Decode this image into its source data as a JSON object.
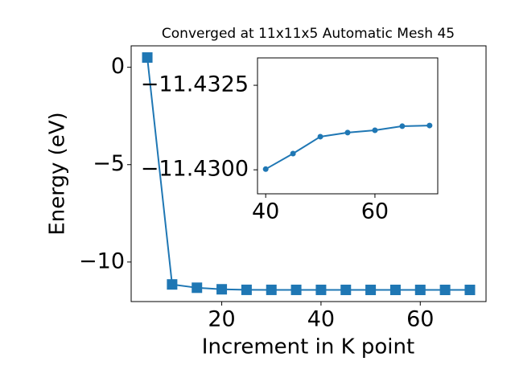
{
  "chart_data": [
    {
      "type": "line",
      "title": "Converged at 11x11x5 Automatic Mesh 45",
      "xlabel": "Increment in K point",
      "ylabel": "Energy (eV)",
      "x": [
        5,
        10,
        15,
        20,
        25,
        30,
        35,
        40,
        45,
        50,
        55,
        60,
        65,
        70
      ],
      "series": [
        {
          "color": "#1f77b4",
          "marker": "square",
          "values": [
            0.5,
            -11.15,
            -11.32,
            -11.4,
            -11.428,
            -11.429,
            -11.4297,
            -11.43,
            -11.4305,
            -11.431,
            -11.4311,
            -11.4312,
            -11.4313,
            -11.4313
          ]
        }
      ],
      "xlim": [
        1.75,
        73.25
      ],
      "xticks": [
        20,
        40,
        60
      ],
      "ylim": [
        -12.03,
        1.1
      ],
      "yticks": [
        {
          "value": 0,
          "label": "0"
        },
        {
          "value": -5,
          "label": "−5"
        },
        {
          "value": -10,
          "label": "−10"
        }
      ]
    },
    {
      "type": "line",
      "x": [
        40,
        45,
        50,
        55,
        60,
        65,
        70
      ],
      "series": [
        {
          "color": "#1f77b4",
          "marker": "circle",
          "values": [
            -11.43002,
            -11.43048,
            -11.43098,
            -11.4311,
            -11.43117,
            -11.43129,
            -11.43131
          ]
        }
      ],
      "xlim": [
        38.5,
        71.5
      ],
      "xticks": [
        40,
        60
      ],
      "ylim": [
        -11.42929,
        -11.43331
      ],
      "yticks": [
        {
          "value": -11.4325,
          "label": "−11.4325"
        },
        {
          "value": -11.43,
          "label": "−11.4300"
        }
      ]
    }
  ]
}
